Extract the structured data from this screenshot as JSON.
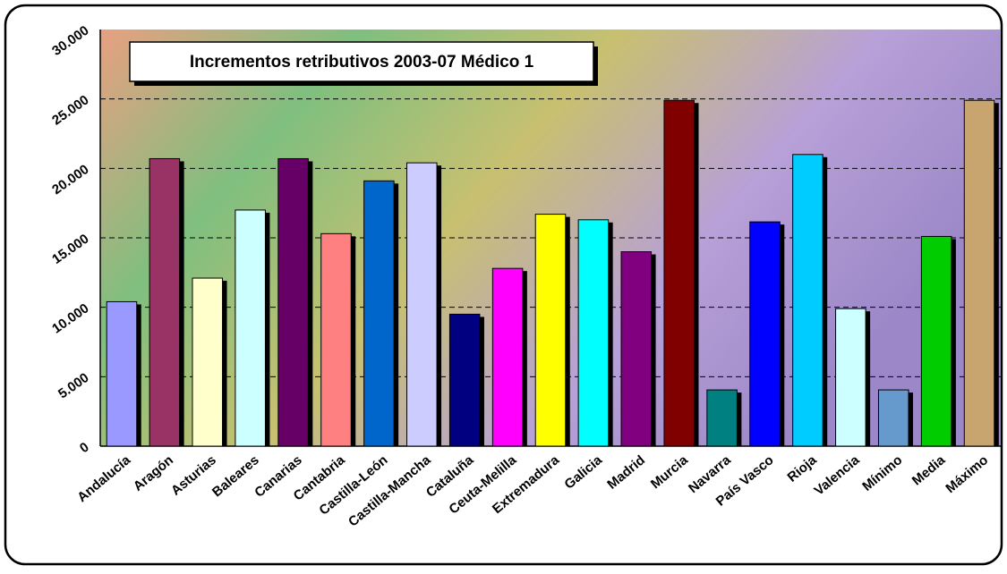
{
  "chart_data": {
    "type": "bar",
    "title": "Incrementos retributivos 2003-07 Médico 1",
    "categories": [
      "Andalucía",
      "Aragón",
      "Asturias",
      "Baleares",
      "Canarias",
      "Cantabria",
      "Castilla-León",
      "Castilla-Mancha",
      "Cataluña",
      "Ceuta-Melilla",
      "Extremadura",
      "Galicia",
      "Madrid",
      "Murcia",
      "Navarra",
      "País Vasco",
      "Rioja",
      "Valencia",
      "Mínimo",
      "Media",
      "Máximo"
    ],
    "values": [
      10400,
      20700,
      12100,
      17000,
      20700,
      15300,
      19100,
      20400,
      9500,
      12800,
      16700,
      16300,
      14000,
      24900,
      4050,
      16150,
      21000,
      9900,
      4050,
      15100,
      24900
    ],
    "colors": [
      "#9999ff",
      "#993366",
      "#ffffcc",
      "#ccffff",
      "#660066",
      "#ff8080",
      "#0066cc",
      "#ccccff",
      "#000080",
      "#ff00ff",
      "#ffff00",
      "#00ffff",
      "#800080",
      "#800000",
      "#008080",
      "#0000ff",
      "#00ccff",
      "#ccffff",
      "#6699cc",
      "#00cc00",
      "#c8a46e"
    ],
    "ylim": [
      0,
      30000
    ],
    "yticks": [
      0,
      {
        "value": 5000,
        "label": "5.000"
      },
      {
        "value": 10000,
        "label": "10.000"
      },
      {
        "value": 15000,
        "label": "15.000"
      },
      {
        "value": 20000,
        "label": "20.000"
      },
      {
        "value": 25000,
        "label": "25.000"
      },
      {
        "value": 30000,
        "label": "30.000"
      }
    ],
    "grid": true
  }
}
